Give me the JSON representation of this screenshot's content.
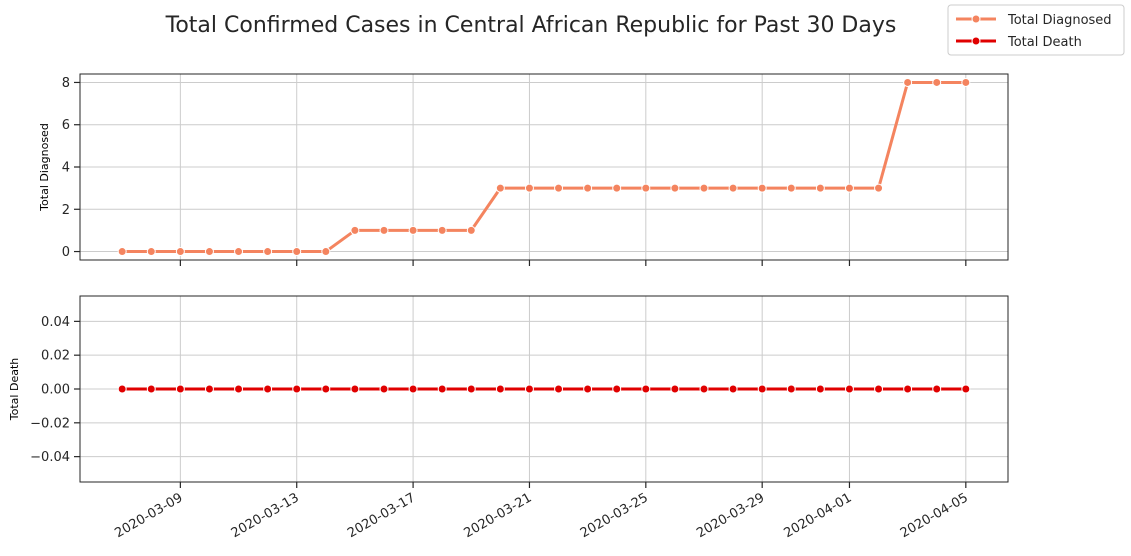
{
  "chart_data": {
    "type": "line",
    "title": "Total Confirmed Cases in Central African Republic for Past 30 Days",
    "x": [
      "2020-03-07",
      "2020-03-08",
      "2020-03-09",
      "2020-03-10",
      "2020-03-11",
      "2020-03-12",
      "2020-03-13",
      "2020-03-14",
      "2020-03-15",
      "2020-03-16",
      "2020-03-17",
      "2020-03-18",
      "2020-03-19",
      "2020-03-20",
      "2020-03-21",
      "2020-03-22",
      "2020-03-23",
      "2020-03-24",
      "2020-03-25",
      "2020-03-26",
      "2020-03-27",
      "2020-03-28",
      "2020-03-29",
      "2020-03-30",
      "2020-03-31",
      "2020-04-01",
      "2020-04-02",
      "2020-04-03",
      "2020-04-04",
      "2020-04-05"
    ],
    "x_ticks": [
      "2020-03-09",
      "2020-03-13",
      "2020-03-17",
      "2020-03-21",
      "2020-03-25",
      "2020-03-29",
      "2020-04-01",
      "2020-04-05"
    ],
    "grid": true,
    "legend_position": "top-right",
    "subplots": [
      {
        "ylabel": "Total Diagnosed",
        "ylim": [
          -0.4,
          8.4
        ],
        "y_ticks": [
          0,
          2,
          4,
          6,
          8
        ],
        "series": [
          {
            "name": "Total Diagnosed",
            "color": "#f4845f",
            "values": [
              0,
              0,
              0,
              0,
              0,
              0,
              0,
              0,
              1,
              1,
              1,
              1,
              1,
              3,
              3,
              3,
              3,
              3,
              3,
              3,
              3,
              3,
              3,
              3,
              3,
              3,
              3,
              8,
              8,
              8
            ]
          }
        ]
      },
      {
        "ylabel": "Total Death",
        "ylim": [
          -0.055,
          0.055
        ],
        "y_ticks": [
          -0.04,
          -0.02,
          0.0,
          0.02,
          0.04
        ],
        "y_tick_labels": [
          "−0.04",
          "−0.02",
          "0.00",
          "0.02",
          "0.04"
        ],
        "series": [
          {
            "name": "Total Death",
            "color": "#e00000",
            "values": [
              0,
              0,
              0,
              0,
              0,
              0,
              0,
              0,
              0,
              0,
              0,
              0,
              0,
              0,
              0,
              0,
              0,
              0,
              0,
              0,
              0,
              0,
              0,
              0,
              0,
              0,
              0,
              0,
              0,
              0
            ]
          }
        ]
      }
    ]
  }
}
